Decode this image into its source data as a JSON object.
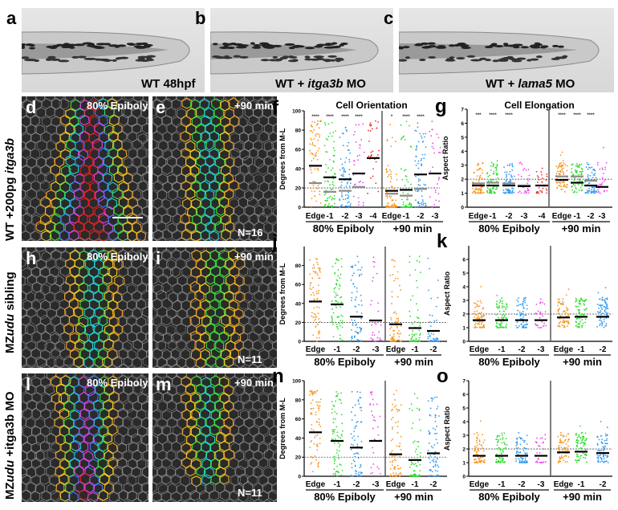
{
  "figure_panels": {
    "a": {
      "letter": "a",
      "label": "WT 48hpf"
    },
    "b": {
      "letter": "b",
      "label_pre": "WT + ",
      "label_gene": "itga3b",
      "label_post": " MO"
    },
    "c": {
      "letter": "c",
      "label_pre": "WT + ",
      "label_gene": "lama5",
      "label_post": " MO"
    },
    "d": {
      "letter": "d",
      "stage": "80% Epiboly"
    },
    "e": {
      "letter": "e",
      "stage": "+90 min",
      "n": "N=16"
    },
    "h": {
      "letter": "h",
      "stage": "80% Epiboly"
    },
    "i": {
      "letter": "i",
      "stage": "+90 min",
      "n": "N=11"
    },
    "l": {
      "letter": "l",
      "stage": "80% Epiboly"
    },
    "m": {
      "letter": "m",
      "stage": "+90 min",
      "n": "N=11"
    }
  },
  "row_labels": [
    {
      "pre": "WT +200pg ",
      "gene": "itga3b",
      "post": ""
    },
    {
      "pre": "MZ",
      "gene": "udu",
      "post": " sibling"
    },
    {
      "pre": "MZ",
      "gene": "udu",
      "post": " +itga3b MO"
    }
  ],
  "colors": {
    "edge": "#f7941d",
    "m1": "#2fdc2f",
    "m2": "#3399ee",
    "m3": "#ee44ee",
    "m4": "#ee2a2a",
    "mean": "#000000",
    "ref_mean": "#8a8a8a"
  },
  "chart_data": [
    {
      "id": "f",
      "letter": "f",
      "type": "scatter",
      "title": "Cell Orientation",
      "ylabel": "Degrees from M-L",
      "ylim": [
        0,
        100
      ],
      "yticks": [
        0,
        20,
        40,
        60,
        80,
        100
      ],
      "ref_line": 20,
      "groups": [
        {
          "label": "80% Epiboly",
          "categories": [
            "Edge",
            "-1",
            "-2",
            "-3",
            "-4"
          ],
          "means": [
            43,
            31,
            29,
            35,
            51
          ],
          "ref_means": [
            25,
            16,
            17,
            21,
            null
          ],
          "significance": [
            "****",
            "****",
            "****",
            "****",
            ""
          ]
        },
        {
          "label": "+90 min",
          "categories": [
            "Edge",
            "-1",
            "-2",
            "-3"
          ],
          "means": [
            17,
            18,
            34,
            35
          ],
          "ref_means": [
            14,
            12,
            19,
            null
          ],
          "significance": [
            "*",
            "****",
            "****",
            ""
          ]
        }
      ]
    },
    {
      "id": "g",
      "letter": "g",
      "type": "scatter",
      "title": "Cell Elongation",
      "ylabel": "Aspect Ratio",
      "ylim": [
        0,
        7
      ],
      "yticks": [
        0,
        1,
        2,
        3,
        4,
        5,
        6,
        7
      ],
      "ref_line": 2,
      "groups": [
        {
          "label": "80% Epiboly",
          "categories": [
            "Edge",
            "-1",
            "-2",
            "-3",
            "-4"
          ],
          "means": [
            1.55,
            1.55,
            1.55,
            1.5,
            1.55
          ],
          "ref_means": [
            1.7,
            1.75,
            1.7,
            1.55,
            null
          ],
          "significance": [
            "***",
            "****",
            "****",
            "",
            ""
          ]
        },
        {
          "label": "+90 min",
          "categories": [
            "Edge",
            "-1",
            "-2",
            "-3"
          ],
          "means": [
            1.95,
            1.75,
            1.55,
            1.45
          ],
          "ref_means": [
            2.2,
            2.2,
            1.9,
            null
          ],
          "significance": [
            "****",
            "****",
            "****",
            ""
          ]
        }
      ]
    },
    {
      "id": "j",
      "letter": "j",
      "type": "scatter",
      "title": "",
      "ylabel": "Degrees from M-L",
      "ylim": [
        0,
        100
      ],
      "yticks": [
        0,
        20,
        40,
        60,
        80
      ],
      "ref_line": 20,
      "groups": [
        {
          "label": "80% Epiboly",
          "categories": [
            "Edge",
            "-1",
            "-2",
            "-3"
          ],
          "means": [
            42,
            39,
            26,
            22
          ]
        },
        {
          "label": "+90 min",
          "categories": [
            "Edge",
            "-1",
            "-2"
          ],
          "means": [
            18,
            14,
            11
          ]
        }
      ]
    },
    {
      "id": "k",
      "letter": "k",
      "type": "scatter",
      "title": "",
      "ylabel": "Aspect Ratio",
      "ylim": [
        0,
        7
      ],
      "yticks": [
        0,
        1,
        2,
        3,
        4,
        5,
        6
      ],
      "ref_line": 2,
      "groups": [
        {
          "label": "80% Epiboly",
          "categories": [
            "Edge",
            "-1",
            "-2",
            "-3"
          ],
          "means": [
            1.55,
            1.55,
            1.55,
            1.55
          ]
        },
        {
          "label": "+90 min",
          "categories": [
            "Edge",
            "-1",
            "-2"
          ],
          "means": [
            1.75,
            1.8,
            1.8
          ]
        }
      ]
    },
    {
      "id": "n",
      "letter": "n",
      "type": "scatter",
      "title": "",
      "ylabel": "Degrees from M-L",
      "ylim": [
        0,
        100
      ],
      "yticks": [
        0,
        20,
        40,
        60,
        80,
        100
      ],
      "ref_line": 20,
      "groups": [
        {
          "label": "80% Epiboly",
          "categories": [
            "Edge",
            "-1",
            "-2",
            "-3"
          ],
          "means": [
            46,
            37,
            30,
            37
          ]
        },
        {
          "label": "+90 min",
          "categories": [
            "Edge",
            "-1",
            "-2"
          ],
          "means": [
            23,
            17,
            24
          ]
        }
      ]
    },
    {
      "id": "o",
      "letter": "o",
      "type": "scatter",
      "title": "",
      "ylabel": "Aspect Ratio",
      "ylim": [
        0,
        7
      ],
      "yticks": [
        0,
        1,
        2,
        3,
        4,
        5,
        6,
        7
      ],
      "ref_line": 2,
      "groups": [
        {
          "label": "80% Epiboly",
          "categories": [
            "Edge",
            "-1",
            "-2",
            "-3"
          ],
          "means": [
            1.5,
            1.5,
            1.5,
            1.5
          ]
        },
        {
          "label": "+90 min",
          "categories": [
            "Edge",
            "-1",
            "-2"
          ],
          "means": [
            1.75,
            1.8,
            1.7
          ]
        }
      ]
    }
  ]
}
